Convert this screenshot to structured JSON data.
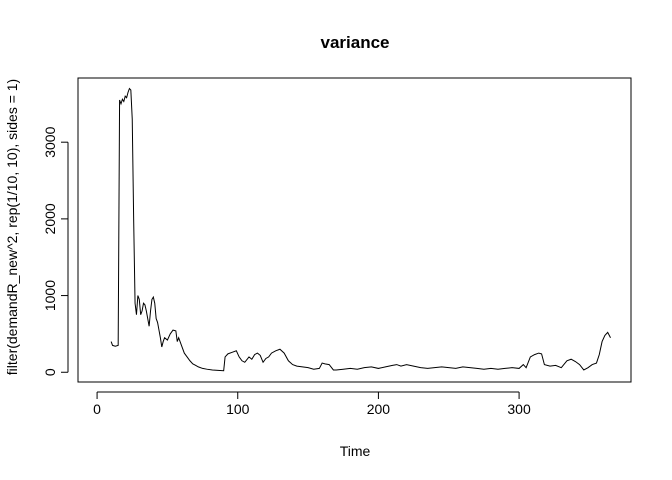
{
  "chart_data": {
    "type": "line",
    "title": "variance",
    "x_label": "Time",
    "y_label": "filter(demandR_new^2, rep(1/10, 10), sides = 1)",
    "x": [
      10,
      11,
      13,
      15,
      16,
      17,
      18,
      19,
      20,
      21,
      22,
      23,
      24,
      25,
      26,
      27,
      28,
      29,
      30,
      31,
      32,
      33,
      34,
      35,
      36,
      37,
      38,
      39,
      40,
      41,
      42,
      43,
      44,
      45,
      46,
      47,
      48,
      50,
      52,
      54,
      56,
      57,
      58,
      60,
      62,
      64,
      66,
      68,
      70,
      72,
      75,
      78,
      82,
      86,
      90,
      91,
      93,
      96,
      99,
      101,
      103,
      105,
      108,
      110,
      112,
      114,
      116,
      118,
      120,
      122,
      124,
      127,
      130,
      133,
      136,
      139,
      142,
      146,
      150,
      154,
      158,
      160,
      162,
      165,
      168,
      170,
      175,
      180,
      185,
      190,
      195,
      200,
      205,
      210,
      213,
      216,
      220,
      225,
      230,
      235,
      240,
      245,
      250,
      255,
      260,
      265,
      270,
      275,
      280,
      285,
      290,
      295,
      300,
      303,
      305,
      308,
      311,
      314,
      316,
      318,
      322,
      326,
      330,
      334,
      337,
      340,
      343,
      346,
      349,
      352,
      355,
      357,
      359,
      361,
      363,
      365
    ],
    "values": [
      400,
      350,
      340,
      350,
      3550,
      3500,
      3560,
      3530,
      3600,
      3580,
      3650,
      3700,
      3680,
      3300,
      2000,
      900,
      750,
      1000,
      950,
      750,
      800,
      900,
      880,
      800,
      700,
      600,
      800,
      950,
      980,
      900,
      700,
      650,
      550,
      450,
      330,
      400,
      450,
      420,
      500,
      550,
      540,
      400,
      450,
      350,
      250,
      200,
      150,
      110,
      90,
      70,
      50,
      40,
      30,
      25,
      20,
      200,
      240,
      260,
      280,
      200,
      150,
      130,
      200,
      170,
      230,
      250,
      220,
      130,
      180,
      200,
      250,
      280,
      300,
      250,
      150,
      100,
      80,
      70,
      60,
      40,
      50,
      120,
      110,
      100,
      30,
      30,
      40,
      50,
      40,
      60,
      70,
      50,
      70,
      90,
      100,
      80,
      100,
      80,
      60,
      50,
      60,
      70,
      60,
      50,
      70,
      60,
      50,
      40,
      50,
      40,
      50,
      60,
      50,
      100,
      60,
      200,
      230,
      250,
      240,
      100,
      80,
      90,
      60,
      150,
      170,
      140,
      100,
      30,
      60,
      100,
      120,
      230,
      400,
      480,
      520,
      450
    ],
    "color": "#000000",
    "xlim": [
      -13.56,
      379.56
    ],
    "xticks": [
      0,
      100,
      200,
      300
    ],
    "ylim": [
      -127,
      3837
    ],
    "yticks": [
      0,
      1000,
      2000,
      3000
    ]
  }
}
